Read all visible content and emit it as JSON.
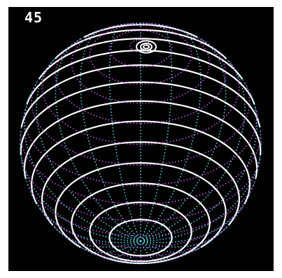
{
  "frame_counter": "45",
  "colors": {
    "background": "#000000",
    "latitude_front": "#ffffff",
    "latitude_back": "#cc55ee",
    "meridian": "#55d8e8"
  }
}
